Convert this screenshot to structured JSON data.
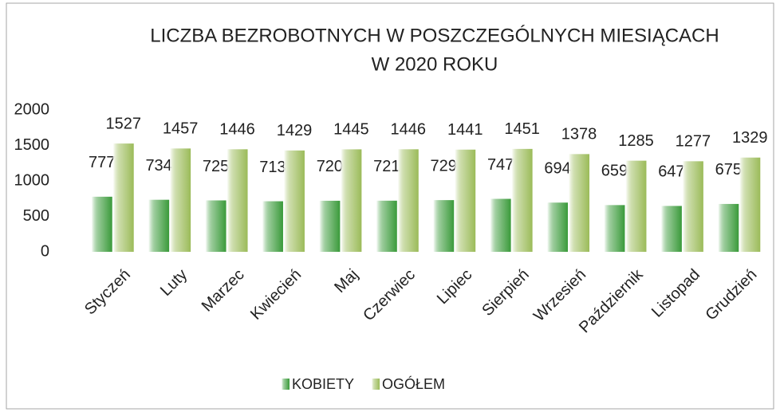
{
  "chart_data": {
    "type": "bar",
    "title": [
      "LICZBA BEZROBOTNYCH W POSZCZEGÓLNYCH MIESIĄCACH",
      "W 2020 ROKU"
    ],
    "categories": [
      "Styczeń",
      "Luty",
      "Marzec",
      "Kwiecień",
      "Maj",
      "Czerwiec",
      "Lipiec",
      "Sierpień",
      "Wrzesień",
      "Październik",
      "Listopad",
      "Grudzień"
    ],
    "series": [
      {
        "name": "KOBIETY",
        "color": "#3a9a3a",
        "values": [
          777,
          734,
          725,
          713,
          720,
          721,
          729,
          747,
          694,
          659,
          647,
          675
        ]
      },
      {
        "name": "OGÓŁEM",
        "color": "#9bbb59",
        "values": [
          1527,
          1457,
          1446,
          1429,
          1445,
          1446,
          1441,
          1451,
          1378,
          1285,
          1277,
          1329
        ]
      }
    ],
    "ylim": [
      0,
      2000
    ],
    "yticks": [
      0,
      500,
      1000,
      1500,
      2000
    ],
    "grid": false,
    "legend": "bottom"
  }
}
